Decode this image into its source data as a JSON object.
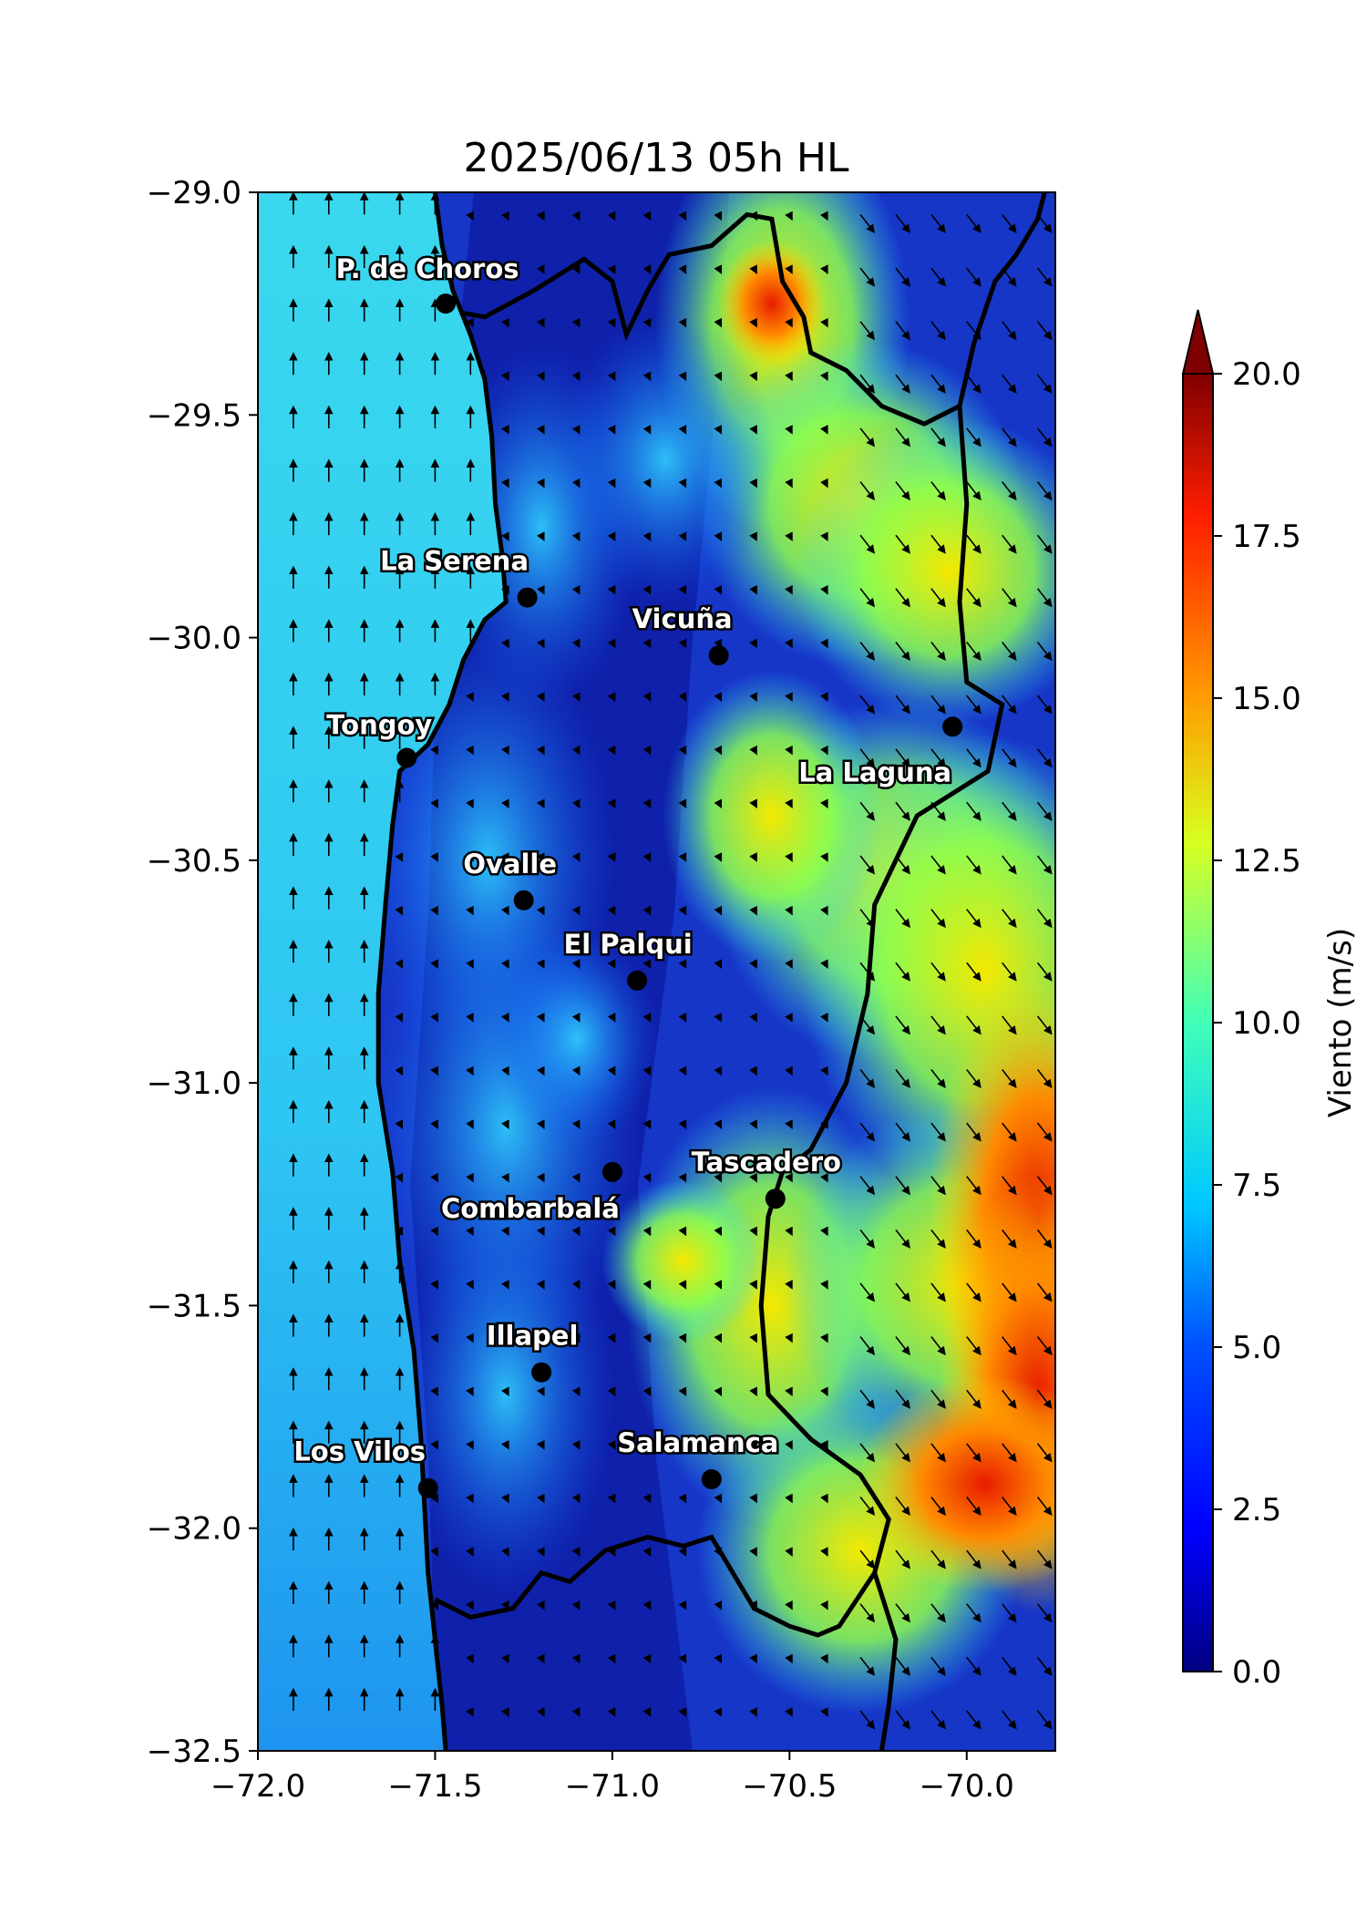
{
  "title": "2025/06/13 05h HL",
  "map": {
    "lon_range": [
      -71.9,
      -69.75
    ],
    "lat_range": [
      -32.5,
      -29.0
    ],
    "x_ticks": [
      "−72.0",
      "−71.5",
      "−71.0",
      "−70.5",
      "−70.0"
    ],
    "x_tick_values": [
      -72.0,
      -71.5,
      -71.0,
      -70.5,
      -70.0
    ],
    "y_ticks": [
      "−29.0",
      "−29.5",
      "−30.0",
      "−30.5",
      "−31.0",
      "−31.5",
      "−32.0",
      "−32.5"
    ],
    "y_tick_values": [
      -29.0,
      -29.5,
      -30.0,
      -30.5,
      -31.0,
      -31.5,
      -32.0,
      -32.5
    ],
    "ocean_color": "#37d1f0",
    "land_color": "#1432c8",
    "colormap": "jet",
    "cities": [
      {
        "name": "P. de Choros",
        "lon": -71.47,
        "lat": -29.25
      },
      {
        "name": "La Serena",
        "lon": -71.24,
        "lat": -29.91
      },
      {
        "name": "Vicuña",
        "lon": -70.7,
        "lat": -30.04
      },
      {
        "name": "Tongoy",
        "lon": -71.58,
        "lat": -30.27
      },
      {
        "name": "La Laguna",
        "lon": -70.04,
        "lat": -30.2
      },
      {
        "name": "Ovalle",
        "lon": -71.25,
        "lat": -30.59
      },
      {
        "name": "El Palqui",
        "lon": -70.93,
        "lat": -30.77
      },
      {
        "name": "Combarbalá",
        "lon": -71.0,
        "lat": -31.2
      },
      {
        "name": "Tascadero",
        "lon": -70.54,
        "lat": -31.26
      },
      {
        "name": "Illapel",
        "lon": -71.2,
        "lat": -31.65
      },
      {
        "name": "Los Vilos",
        "lon": -71.52,
        "lat": -31.91
      },
      {
        "name": "Salamanca",
        "lon": -70.72,
        "lat": -31.89
      }
    ]
  },
  "colorbar": {
    "label": "Viento (m/s)",
    "range": [
      0.0,
      20.0
    ],
    "extend": "max",
    "ticks": [
      "0.0",
      "2.5",
      "5.0",
      "7.5",
      "10.0",
      "12.5",
      "15.0",
      "17.5",
      "20.0"
    ],
    "tick_values": [
      0.0,
      2.5,
      5.0,
      7.5,
      10.0,
      12.5,
      15.0,
      17.5,
      20.0
    ]
  }
}
